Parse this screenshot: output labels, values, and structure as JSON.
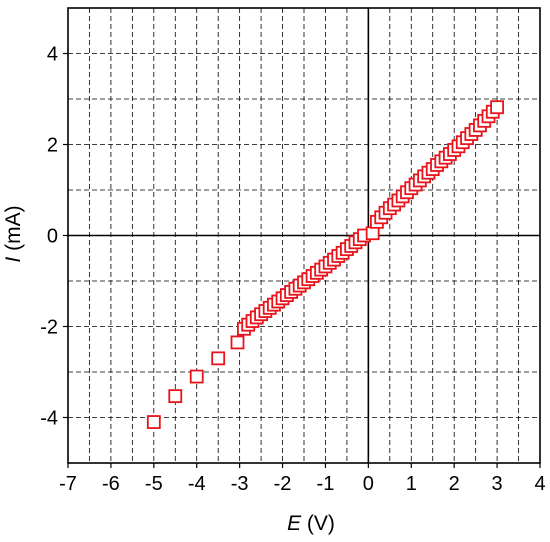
{
  "chart_data": {
    "type": "scatter",
    "xlabel": {
      "symbol": "E",
      "unit": " (V)"
    },
    "ylabel": {
      "symbol": "I",
      "unit": " (mA)"
    },
    "xlim": [
      -7,
      4
    ],
    "ylim": [
      -5,
      5
    ],
    "x_ticks": [
      "-7",
      "-6",
      "-5",
      "-4",
      "-3",
      "-2",
      "-1",
      "0",
      "1",
      "2",
      "3",
      "4"
    ],
    "y_ticks": [
      "-4",
      "-2",
      "0",
      "2",
      "4"
    ],
    "grid": "dashed major and minor",
    "marker": "open square",
    "marker_color": "#e8141c",
    "series": [
      {
        "x": [
          -5.0,
          -4.5,
          -4.0,
          -3.5,
          -3.05,
          -2.9,
          -2.8,
          -2.7,
          -2.6,
          -2.5,
          -2.4,
          -2.3,
          -2.2,
          -2.1,
          -2.0,
          -1.9,
          -1.8,
          -1.7,
          -1.6,
          -1.5,
          -1.4,
          -1.3,
          -1.2,
          -1.1,
          -1.0,
          -0.9,
          -0.8,
          -0.7,
          -0.6,
          -0.5,
          -0.4,
          -0.3,
          -0.2,
          -0.1,
          0.1,
          0.2,
          0.3,
          0.4,
          0.5,
          0.6,
          0.7,
          0.8,
          0.9,
          1.0,
          1.1,
          1.2,
          1.3,
          1.4,
          1.5,
          1.6,
          1.7,
          1.8,
          1.9,
          2.0,
          2.1,
          2.2,
          2.3,
          2.4,
          2.5,
          2.6,
          2.7,
          2.8,
          2.9,
          3.0
        ],
        "y": [
          -4.1,
          -3.53,
          -3.1,
          -2.7,
          -2.35,
          -2.05,
          -1.96,
          -1.88,
          -1.8,
          -1.73,
          -1.66,
          -1.59,
          -1.52,
          -1.45,
          -1.38,
          -1.31,
          -1.24,
          -1.17,
          -1.1,
          -1.03,
          -0.96,
          -0.89,
          -0.82,
          -0.75,
          -0.68,
          -0.6,
          -0.53,
          -0.45,
          -0.38,
          -0.3,
          -0.23,
          -0.15,
          -0.08,
          0.0,
          0.05,
          0.3,
          0.4,
          0.5,
          0.6,
          0.68,
          0.77,
          0.86,
          0.95,
          1.04,
          1.12,
          1.21,
          1.3,
          1.38,
          1.46,
          1.55,
          1.63,
          1.71,
          1.79,
          1.88,
          1.96,
          2.05,
          2.14,
          2.23,
          2.32,
          2.42,
          2.52,
          2.62,
          2.72,
          2.82
        ]
      }
    ]
  }
}
